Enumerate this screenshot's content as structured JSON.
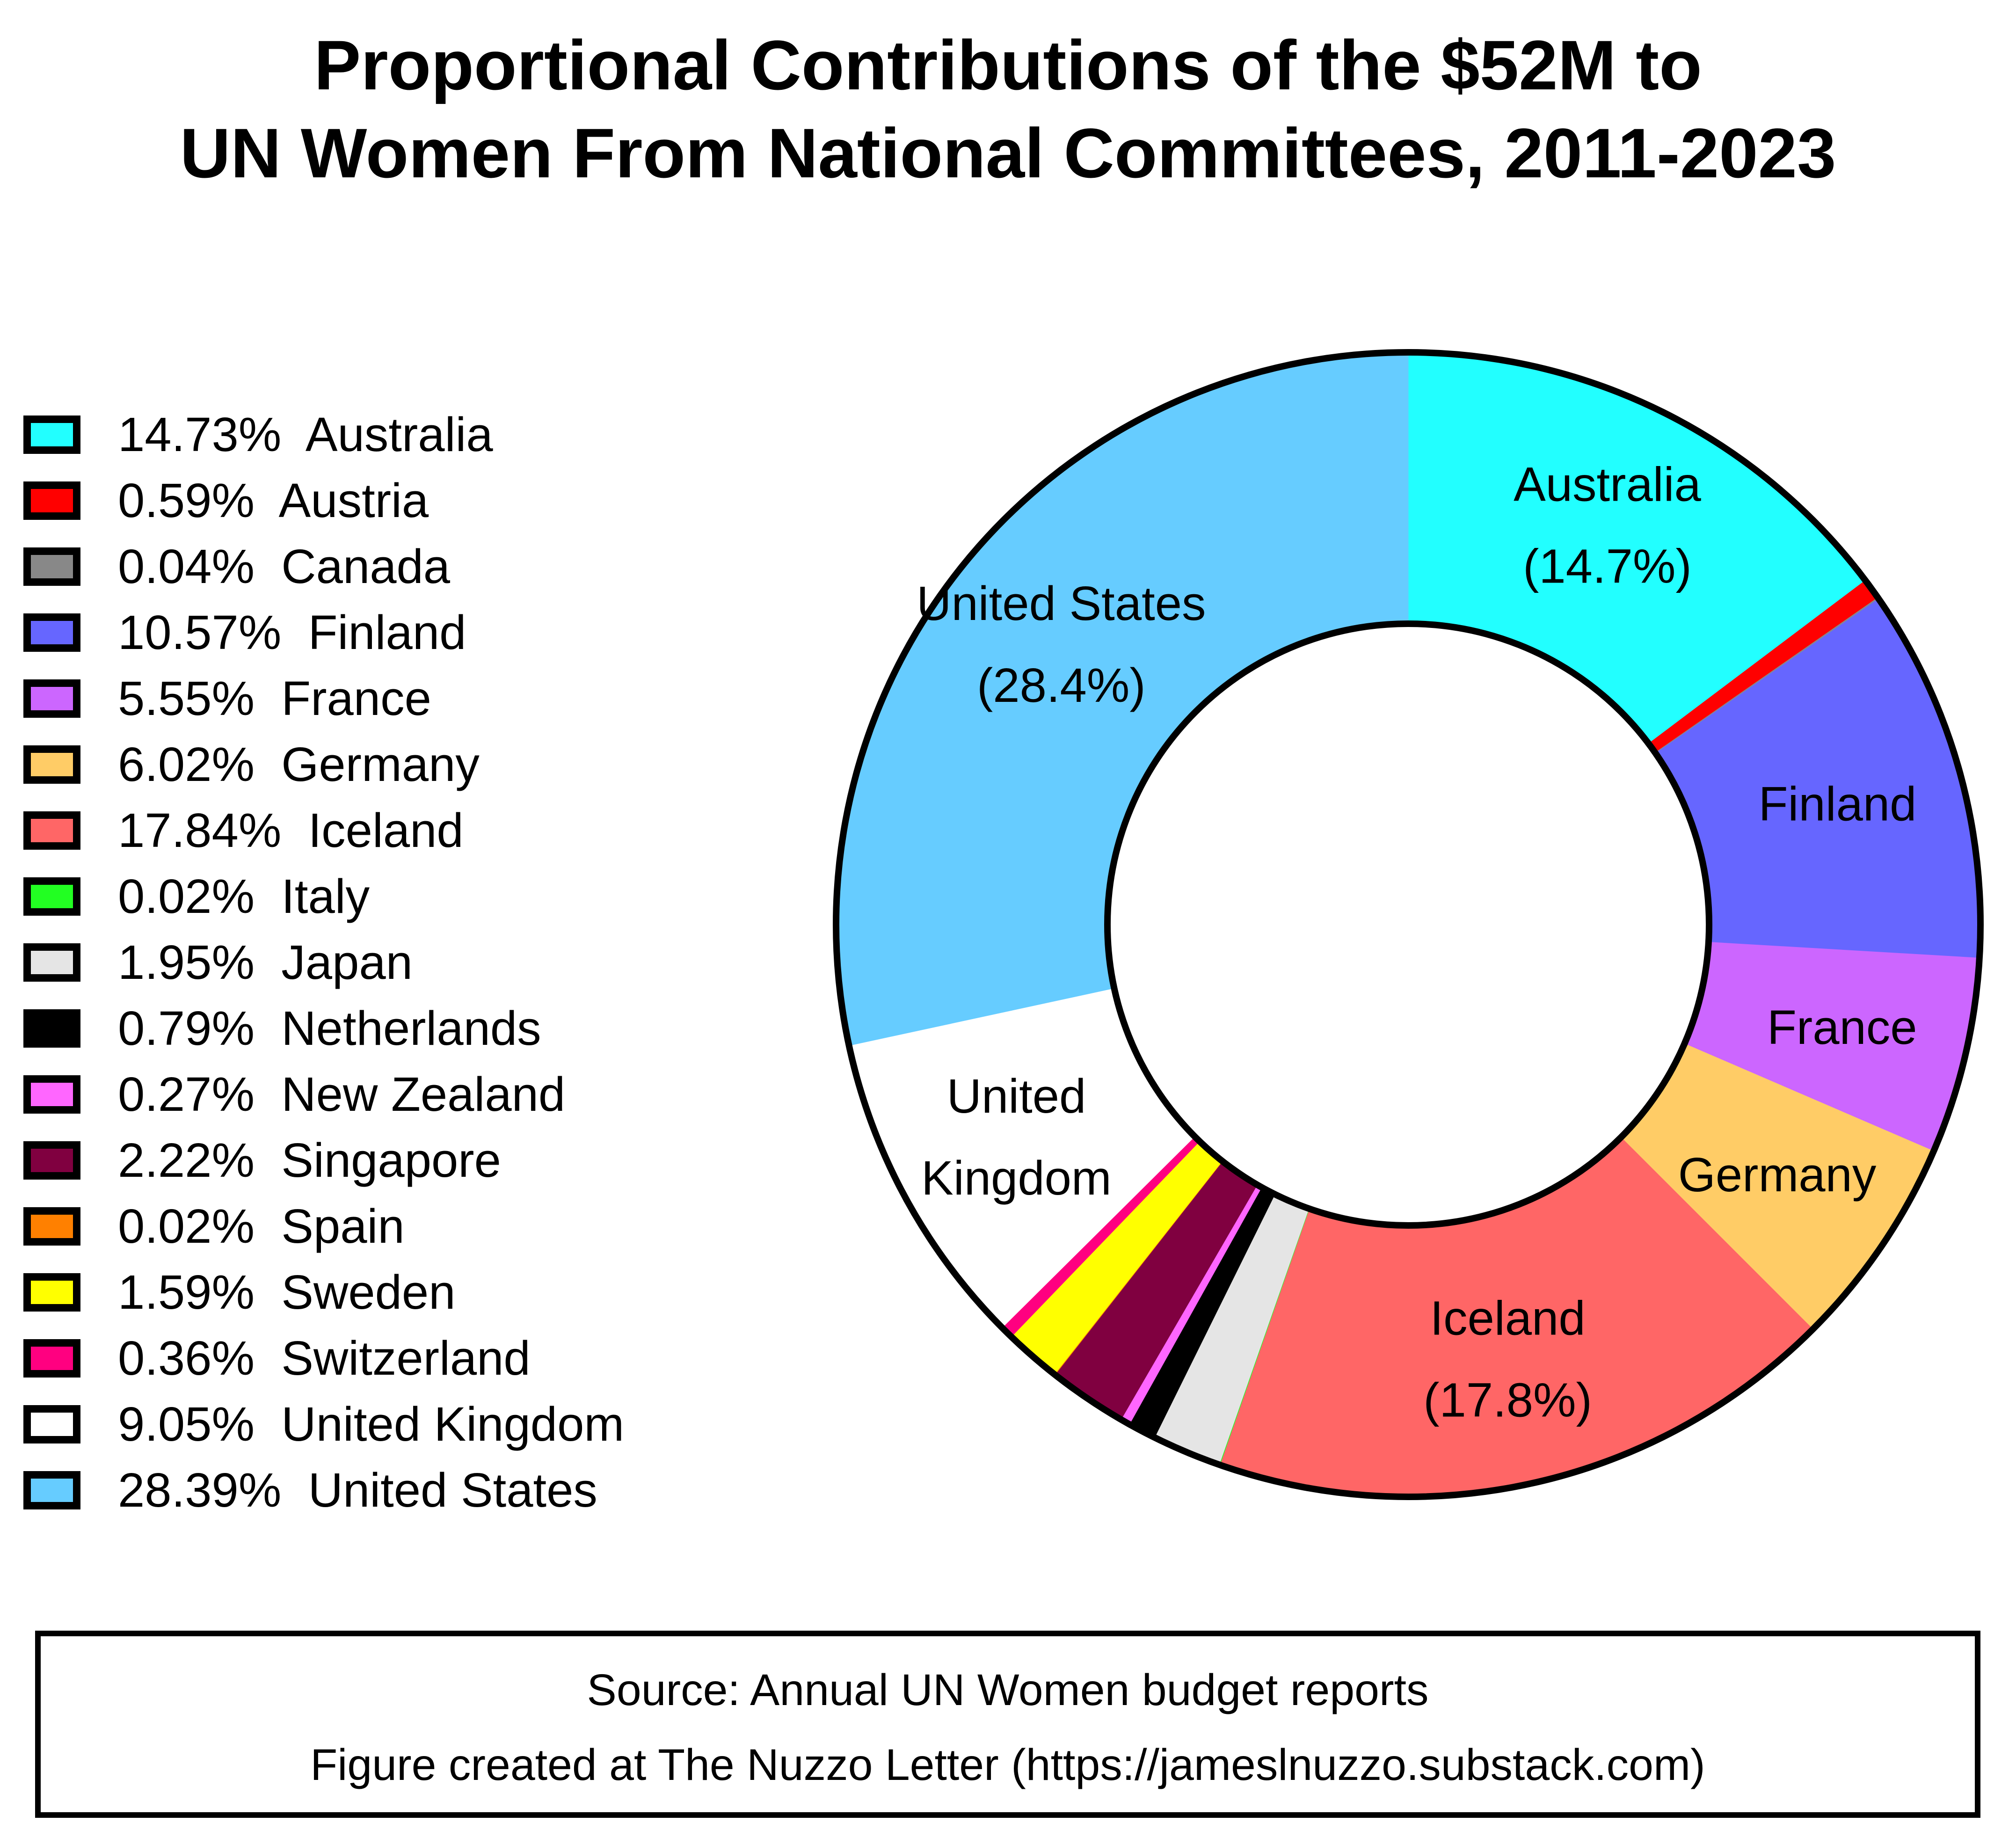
{
  "chart_data": {
    "type": "pie",
    "title": [
      "Proportional Contributions of the $52M to",
      "UN Women From National Committees, 2011-2023"
    ],
    "legend_placement": "left",
    "categories": [
      "Australia",
      "Austria",
      "Canada",
      "Finland",
      "France",
      "Germany",
      "Iceland",
      "Italy",
      "Japan",
      "Netherlands",
      "New Zealand",
      "Singapore",
      "Spain",
      "Sweden",
      "Switzerland",
      "United Kingdom",
      "United States"
    ],
    "values": [
      14.73,
      0.59,
      0.04,
      10.57,
      5.55,
      6.02,
      17.84,
      0.02,
      1.95,
      0.79,
      0.27,
      2.22,
      0.02,
      1.59,
      0.36,
      9.05,
      28.39
    ],
    "colors": [
      "#22ffff",
      "#ff0000",
      "#888888",
      "#6666ff",
      "#cc66ff",
      "#ffcc66",
      "#ff6666",
      "#22ff22",
      "#e5e5e5",
      "#000000",
      "#ff66ff",
      "#800040",
      "#ff8000",
      "#ffff00",
      "#ff0080",
      "#ffffff",
      "#66ccff"
    ],
    "legend_labels": [
      "14.73%  Australia",
      "0.59%  Austria",
      "0.04%  Canada",
      "10.57%  Finland",
      "5.55%  France",
      "6.02%  Germany",
      "17.84%  Iceland",
      "0.02%  Italy",
      "1.95%  Japan",
      "0.79%  Netherlands",
      "0.27%  New Zealand",
      "2.22%  Singapore",
      "0.02%  Spain",
      "1.59%  Sweden",
      "0.36%  Switzerland",
      "9.05%  United Kingdom",
      "28.39%  United States"
    ],
    "slice_labels": [
      {
        "index": 0,
        "lines": [
          "Australia",
          "(14.7%)"
        ]
      },
      {
        "index": 3,
        "lines": [
          "Finland"
        ]
      },
      {
        "index": 4,
        "lines": [
          "France"
        ]
      },
      {
        "index": 5,
        "lines": [
          "Germany"
        ]
      },
      {
        "index": 6,
        "lines": [
          "Iceland",
          "(17.8%)"
        ]
      },
      {
        "index": 15,
        "lines": [
          "United",
          "Kingdom"
        ]
      },
      {
        "index": 16,
        "lines": [
          "United States",
          "(28.4%)"
        ]
      }
    ]
  },
  "source": {
    "line1": "Source: Annual UN Women budget reports",
    "line2": "Figure created at The Nuzzo Letter (https://jameslnuzzo.substack.com)"
  }
}
